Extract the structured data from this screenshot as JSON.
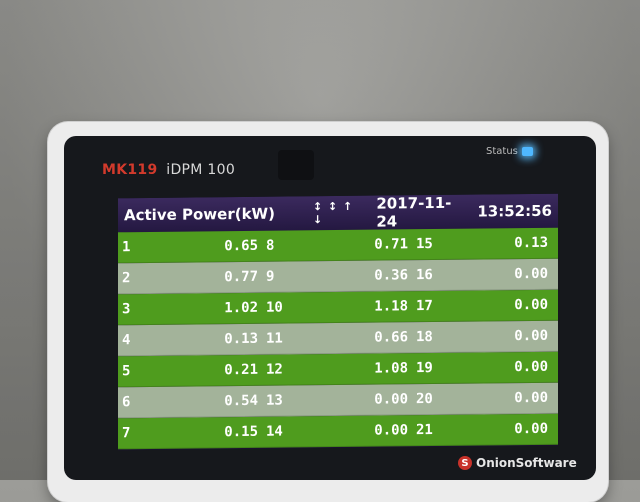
{
  "device": {
    "model": "MK119",
    "product": "iDPM 100",
    "status_label": "Status",
    "logo_mark": "S",
    "logo_text": "OnionSoftware"
  },
  "header": {
    "title": "Active Power(kW)",
    "arrows": "↕ ↕ ↑ ↓",
    "date": "2017-11-24",
    "time": "13:52:56"
  },
  "rows": [
    {
      "c1": "1",
      "v1": "0.65",
      "c2": "8",
      "v2": "0.71",
      "c3": "15",
      "v3": "0.13"
    },
    {
      "c1": "2",
      "v1": "0.77",
      "c2": "9",
      "v2": "0.36",
      "c3": "16",
      "v3": "0.00"
    },
    {
      "c1": "3",
      "v1": "1.02",
      "c2": "10",
      "v2": "1.18",
      "c3": "17",
      "v3": "0.00"
    },
    {
      "c1": "4",
      "v1": "0.13",
      "c2": "11",
      "v2": "0.66",
      "c3": "18",
      "v3": "0.00"
    },
    {
      "c1": "5",
      "v1": "0.21",
      "c2": "12",
      "v2": "1.08",
      "c3": "19",
      "v3": "0.00"
    },
    {
      "c1": "6",
      "v1": "0.54",
      "c2": "13",
      "v2": "0.00",
      "c3": "20",
      "v3": "0.00"
    },
    {
      "c1": "7",
      "v1": "0.15",
      "c2": "14",
      "v2": "0.00",
      "c3": "21",
      "v3": "0.00"
    }
  ],
  "colors": {
    "row_green": "#4f9c1e",
    "row_silver": "#a3b39a",
    "header_purple": "#3b2a5e",
    "model_red": "#d23a2c",
    "status_led": "#4fb8ff"
  }
}
